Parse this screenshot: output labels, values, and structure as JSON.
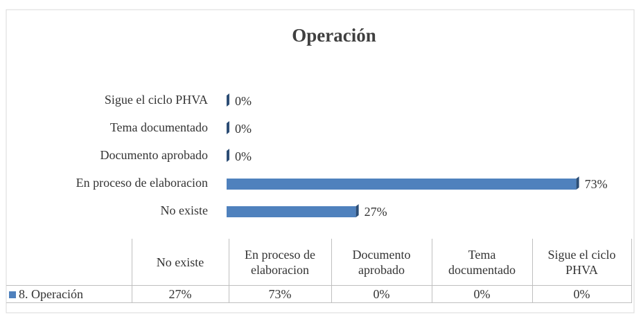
{
  "chart_data": {
    "type": "bar",
    "orientation": "horizontal",
    "title": "Operación",
    "categories": [
      "No existe",
      "En proceso de elaboracion",
      "Documento aprobado",
      "Tema documentado",
      "Sigue el ciclo PHVA"
    ],
    "series": [
      {
        "name": "8. Operación",
        "color": "#4f81bd",
        "values": [
          27,
          73,
          0,
          0,
          0
        ],
        "value_labels": [
          "27%",
          "73%",
          "0%",
          "0%",
          "0%"
        ]
      }
    ],
    "xlim": [
      0,
      80
    ],
    "data_table": true
  }
}
